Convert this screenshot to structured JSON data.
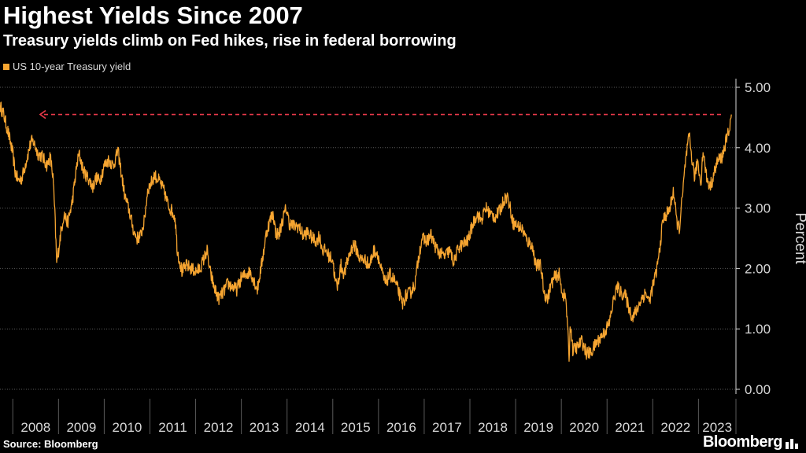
{
  "header": {
    "title": "Highest Yields Since 2007",
    "subtitle": "Treasury yields climb on Fed hikes, rise in federal borrowing"
  },
  "footer": {
    "source": "Source: Bloomberg",
    "brand": "Bloomberg"
  },
  "colors": {
    "series": "#f6a531",
    "reference": "#e8394a",
    "grid": "#5a5a5a",
    "axis": "#d8d8d8"
  },
  "chart_data": {
    "type": "line",
    "title": "Highest Yields Since 2007",
    "subtitle": "Treasury yields climb on Fed hikes, rise in federal borrowing",
    "xlabel": "",
    "ylabel": "Percent",
    "xlim": [
      2007.72,
      2023.82
    ],
    "ylim": [
      0,
      5
    ],
    "yticks": [
      0,
      1,
      2,
      3,
      4,
      5
    ],
    "ytick_labels": [
      "0.00",
      "1.00",
      "2.00",
      "3.00",
      "4.00",
      "5.00"
    ],
    "xtick_labels": [
      "2008",
      "2009",
      "2010",
      "2011",
      "2012",
      "2013",
      "2014",
      "2015",
      "2016",
      "2017",
      "2018",
      "2019",
      "2020",
      "2021",
      "2022",
      "2023"
    ],
    "grid": true,
    "legend": {
      "position": "top-left",
      "entries": [
        "US 10-year Treasury yield"
      ]
    },
    "reference_line": {
      "y": 4.55,
      "style": "dashed",
      "direction": "arrow-left"
    },
    "series": [
      {
        "name": "US 10-year Treasury yield",
        "points": [
          [
            2007.72,
            4.7
          ],
          [
            2007.8,
            4.55
          ],
          [
            2007.9,
            4.25
          ],
          [
            2008.0,
            3.9
          ],
          [
            2008.05,
            3.6
          ],
          [
            2008.12,
            3.45
          ],
          [
            2008.2,
            3.5
          ],
          [
            2008.3,
            3.8
          ],
          [
            2008.4,
            4.1
          ],
          [
            2008.45,
            4.1
          ],
          [
            2008.55,
            3.9
          ],
          [
            2008.65,
            3.85
          ],
          [
            2008.75,
            3.7
          ],
          [
            2008.82,
            3.85
          ],
          [
            2008.88,
            3.5
          ],
          [
            2008.92,
            2.9
          ],
          [
            2008.96,
            2.1
          ],
          [
            2009.0,
            2.3
          ],
          [
            2009.05,
            2.6
          ],
          [
            2009.12,
            2.9
          ],
          [
            2009.2,
            2.75
          ],
          [
            2009.3,
            3.1
          ],
          [
            2009.4,
            3.7
          ],
          [
            2009.45,
            3.9
          ],
          [
            2009.55,
            3.6
          ],
          [
            2009.65,
            3.5
          ],
          [
            2009.75,
            3.35
          ],
          [
            2009.82,
            3.5
          ],
          [
            2009.9,
            3.45
          ],
          [
            2010.0,
            3.7
          ],
          [
            2010.1,
            3.8
          ],
          [
            2010.2,
            3.7
          ],
          [
            2010.3,
            3.95
          ],
          [
            2010.35,
            3.7
          ],
          [
            2010.45,
            3.2
          ],
          [
            2010.55,
            2.95
          ],
          [
            2010.65,
            2.6
          ],
          [
            2010.72,
            2.5
          ],
          [
            2010.8,
            2.55
          ],
          [
            2010.88,
            2.8
          ],
          [
            2010.95,
            3.3
          ],
          [
            2011.05,
            3.45
          ],
          [
            2011.1,
            3.55
          ],
          [
            2011.2,
            3.45
          ],
          [
            2011.3,
            3.3
          ],
          [
            2011.4,
            3.05
          ],
          [
            2011.48,
            2.95
          ],
          [
            2011.55,
            2.85
          ],
          [
            2011.6,
            2.3
          ],
          [
            2011.7,
            1.95
          ],
          [
            2011.8,
            2.05
          ],
          [
            2011.9,
            2.0
          ],
          [
            2012.0,
            1.95
          ],
          [
            2012.1,
            2.0
          ],
          [
            2012.2,
            2.2
          ],
          [
            2012.25,
            2.3
          ],
          [
            2012.3,
            2.0
          ],
          [
            2012.4,
            1.7
          ],
          [
            2012.5,
            1.5
          ],
          [
            2012.6,
            1.6
          ],
          [
            2012.7,
            1.75
          ],
          [
            2012.8,
            1.7
          ],
          [
            2012.9,
            1.65
          ],
          [
            2013.0,
            1.85
          ],
          [
            2013.1,
            1.9
          ],
          [
            2013.2,
            1.95
          ],
          [
            2013.3,
            1.75
          ],
          [
            2013.35,
            1.65
          ],
          [
            2013.45,
            2.1
          ],
          [
            2013.55,
            2.6
          ],
          [
            2013.65,
            2.85
          ],
          [
            2013.7,
            2.9
          ],
          [
            2013.75,
            2.6
          ],
          [
            2013.82,
            2.55
          ],
          [
            2013.9,
            2.8
          ],
          [
            2013.98,
            3.0
          ],
          [
            2014.05,
            2.75
          ],
          [
            2014.15,
            2.7
          ],
          [
            2014.25,
            2.7
          ],
          [
            2014.35,
            2.55
          ],
          [
            2014.45,
            2.6
          ],
          [
            2014.55,
            2.5
          ],
          [
            2014.65,
            2.45
          ],
          [
            2014.7,
            2.55
          ],
          [
            2014.78,
            2.3
          ],
          [
            2014.85,
            2.3
          ],
          [
            2014.92,
            2.2
          ],
          [
            2015.0,
            2.15
          ],
          [
            2015.05,
            1.8
          ],
          [
            2015.1,
            1.7
          ],
          [
            2015.18,
            2.05
          ],
          [
            2015.25,
            1.9
          ],
          [
            2015.35,
            2.2
          ],
          [
            2015.45,
            2.4
          ],
          [
            2015.5,
            2.35
          ],
          [
            2015.6,
            2.15
          ],
          [
            2015.7,
            2.15
          ],
          [
            2015.8,
            2.05
          ],
          [
            2015.9,
            2.3
          ],
          [
            2015.98,
            2.25
          ],
          [
            2016.05,
            2.0
          ],
          [
            2016.15,
            1.75
          ],
          [
            2016.25,
            1.9
          ],
          [
            2016.35,
            1.8
          ],
          [
            2016.45,
            1.6
          ],
          [
            2016.52,
            1.4
          ],
          [
            2016.6,
            1.55
          ],
          [
            2016.7,
            1.6
          ],
          [
            2016.8,
            1.75
          ],
          [
            2016.88,
            2.2
          ],
          [
            2016.95,
            2.5
          ],
          [
            2017.05,
            2.45
          ],
          [
            2017.15,
            2.55
          ],
          [
            2017.25,
            2.35
          ],
          [
            2017.35,
            2.25
          ],
          [
            2017.45,
            2.2
          ],
          [
            2017.55,
            2.3
          ],
          [
            2017.65,
            2.1
          ],
          [
            2017.75,
            2.35
          ],
          [
            2017.85,
            2.4
          ],
          [
            2017.95,
            2.45
          ],
          [
            2018.05,
            2.7
          ],
          [
            2018.15,
            2.9
          ],
          [
            2018.25,
            2.8
          ],
          [
            2018.35,
            3.0
          ],
          [
            2018.45,
            2.9
          ],
          [
            2018.55,
            2.85
          ],
          [
            2018.65,
            2.95
          ],
          [
            2018.75,
            3.15
          ],
          [
            2018.82,
            3.2
          ],
          [
            2018.88,
            3.0
          ],
          [
            2018.95,
            2.75
          ],
          [
            2019.05,
            2.7
          ],
          [
            2019.15,
            2.65
          ],
          [
            2019.25,
            2.45
          ],
          [
            2019.35,
            2.4
          ],
          [
            2019.45,
            2.05
          ],
          [
            2019.55,
            2.05
          ],
          [
            2019.62,
            1.6
          ],
          [
            2019.7,
            1.5
          ],
          [
            2019.78,
            1.75
          ],
          [
            2019.85,
            1.85
          ],
          [
            2019.95,
            1.9
          ],
          [
            2020.02,
            1.6
          ],
          [
            2020.1,
            1.5
          ],
          [
            2020.17,
            0.55
          ],
          [
            2020.2,
            1.1
          ],
          [
            2020.25,
            0.65
          ],
          [
            2020.35,
            0.7
          ],
          [
            2020.45,
            0.8
          ],
          [
            2020.55,
            0.6
          ],
          [
            2020.65,
            0.6
          ],
          [
            2020.75,
            0.75
          ],
          [
            2020.85,
            0.85
          ],
          [
            2020.95,
            0.95
          ],
          [
            2021.05,
            1.1
          ],
          [
            2021.15,
            1.5
          ],
          [
            2021.22,
            1.7
          ],
          [
            2021.3,
            1.6
          ],
          [
            2021.4,
            1.55
          ],
          [
            2021.5,
            1.3
          ],
          [
            2021.55,
            1.2
          ],
          [
            2021.65,
            1.3
          ],
          [
            2021.75,
            1.5
          ],
          [
            2021.85,
            1.6
          ],
          [
            2021.92,
            1.45
          ],
          [
            2022.0,
            1.7
          ],
          [
            2022.08,
            1.95
          ],
          [
            2022.15,
            2.3
          ],
          [
            2022.22,
            2.8
          ],
          [
            2022.3,
            2.9
          ],
          [
            2022.38,
            3.0
          ],
          [
            2022.45,
            3.3
          ],
          [
            2022.52,
            2.8
          ],
          [
            2022.58,
            2.65
          ],
          [
            2022.65,
            3.2
          ],
          [
            2022.72,
            3.8
          ],
          [
            2022.8,
            4.2
          ],
          [
            2022.85,
            3.85
          ],
          [
            2022.92,
            3.5
          ],
          [
            2022.98,
            3.8
          ],
          [
            2023.05,
            3.4
          ],
          [
            2023.1,
            3.95
          ],
          [
            2023.18,
            3.5
          ],
          [
            2023.25,
            3.35
          ],
          [
            2023.32,
            3.5
          ],
          [
            2023.4,
            3.75
          ],
          [
            2023.45,
            3.8
          ],
          [
            2023.52,
            3.85
          ],
          [
            2023.6,
            4.1
          ],
          [
            2023.67,
            4.3
          ],
          [
            2023.72,
            4.55
          ]
        ]
      }
    ]
  }
}
